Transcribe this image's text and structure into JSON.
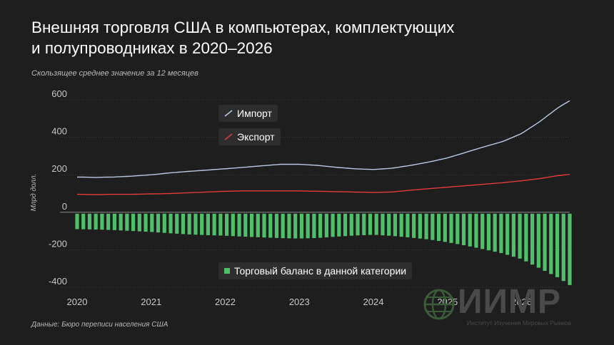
{
  "title_line1": "Внешняя торговля США в компьютерах, комплектующих",
  "title_line2": "и полупроводниках в 2020–2026",
  "subtitle": "Скользящее среднее значение за 12 месяцев",
  "source": "Данные: Бюро переписи населения США",
  "logo": {
    "name": "ИИМР",
    "subtitle": "Институт Изучения Мировых Рынков"
  },
  "colors": {
    "import": "#b7c9e4",
    "export": "#e23b3b",
    "balance": "#4fbf6a",
    "grid": "#5a5a5a",
    "zero": "#8a8a8a",
    "tick": "#c8c8c8"
  },
  "chart_data": {
    "type": "line",
    "title": "Внешняя торговля США в компьютерах, комплектующих и полупроводниках в 2020–2026",
    "subtitle": "Скользящее среднее значение за 12 месяцев",
    "ylabel": "Млрд долл.",
    "xlabel": "",
    "ylim": [
      -400,
      600
    ],
    "yticks": [
      600,
      400,
      200,
      0,
      -200,
      -400
    ],
    "xticks": [
      "2020",
      "2021",
      "2022",
      "2023",
      "2024",
      "2025",
      "2026"
    ],
    "xlim": [
      2020,
      2026.65
    ],
    "grid": true,
    "legend": [
      "Импорт",
      "Экспорт",
      "Торговый баланс в данной категории"
    ],
    "series": [
      {
        "name": "Импорт",
        "kind": "line",
        "points": [
          [
            2020,
            188
          ],
          [
            2020.25,
            186
          ],
          [
            2020.5,
            188
          ],
          [
            2020.75,
            193
          ],
          [
            2021,
            200
          ],
          [
            2021.25,
            210
          ],
          [
            2021.5,
            218
          ],
          [
            2021.75,
            225
          ],
          [
            2022,
            232
          ],
          [
            2022.25,
            240
          ],
          [
            2022.5,
            248
          ],
          [
            2022.75,
            256
          ],
          [
            2023,
            256
          ],
          [
            2023.25,
            250
          ],
          [
            2023.5,
            240
          ],
          [
            2023.75,
            232
          ],
          [
            2024,
            228
          ],
          [
            2024.25,
            235
          ],
          [
            2024.5,
            250
          ],
          [
            2024.75,
            268
          ],
          [
            2025,
            290
          ],
          [
            2025.25,
            320
          ],
          [
            2025.5,
            350
          ],
          [
            2025.75,
            378
          ],
          [
            2026,
            420
          ],
          [
            2026.25,
            485
          ],
          [
            2026.5,
            560
          ],
          [
            2026.65,
            595
          ]
        ]
      },
      {
        "name": "Экспорт",
        "kind": "line",
        "points": [
          [
            2020,
            96
          ],
          [
            2020.25,
            94
          ],
          [
            2020.5,
            96
          ],
          [
            2020.75,
            96
          ],
          [
            2021,
            98
          ],
          [
            2021.25,
            100
          ],
          [
            2021.5,
            104
          ],
          [
            2021.75,
            108
          ],
          [
            2022,
            112
          ],
          [
            2022.25,
            114
          ],
          [
            2022.5,
            114
          ],
          [
            2022.75,
            114
          ],
          [
            2023,
            114
          ],
          [
            2023.25,
            112
          ],
          [
            2023.5,
            110
          ],
          [
            2023.75,
            108
          ],
          [
            2024,
            106
          ],
          [
            2024.25,
            108
          ],
          [
            2024.5,
            118
          ],
          [
            2024.75,
            126
          ],
          [
            2025,
            134
          ],
          [
            2025.25,
            142
          ],
          [
            2025.5,
            150
          ],
          [
            2025.75,
            158
          ],
          [
            2026,
            168
          ],
          [
            2026.25,
            180
          ],
          [
            2026.5,
            196
          ],
          [
            2026.65,
            202
          ]
        ]
      },
      {
        "name": "Торговый баланс в данной категории",
        "kind": "bar",
        "points": [
          [
            2020,
            -90
          ],
          [
            2020.25,
            -92
          ],
          [
            2020.5,
            -95
          ],
          [
            2020.75,
            -100
          ],
          [
            2021,
            -105
          ],
          [
            2021.25,
            -112
          ],
          [
            2021.5,
            -118
          ],
          [
            2021.75,
            -122
          ],
          [
            2022,
            -125
          ],
          [
            2022.25,
            -130
          ],
          [
            2022.5,
            -134
          ],
          [
            2022.75,
            -138
          ],
          [
            2023,
            -140
          ],
          [
            2023.25,
            -137
          ],
          [
            2023.5,
            -130
          ],
          [
            2023.75,
            -124
          ],
          [
            2024,
            -120
          ],
          [
            2024.25,
            -126
          ],
          [
            2024.5,
            -135
          ],
          [
            2024.75,
            -145
          ],
          [
            2025,
            -160
          ],
          [
            2025.25,
            -178
          ],
          [
            2025.5,
            -198
          ],
          [
            2025.75,
            -220
          ],
          [
            2026,
            -250
          ],
          [
            2026.25,
            -300
          ],
          [
            2026.5,
            -350
          ],
          [
            2026.65,
            -388
          ]
        ]
      }
    ]
  }
}
